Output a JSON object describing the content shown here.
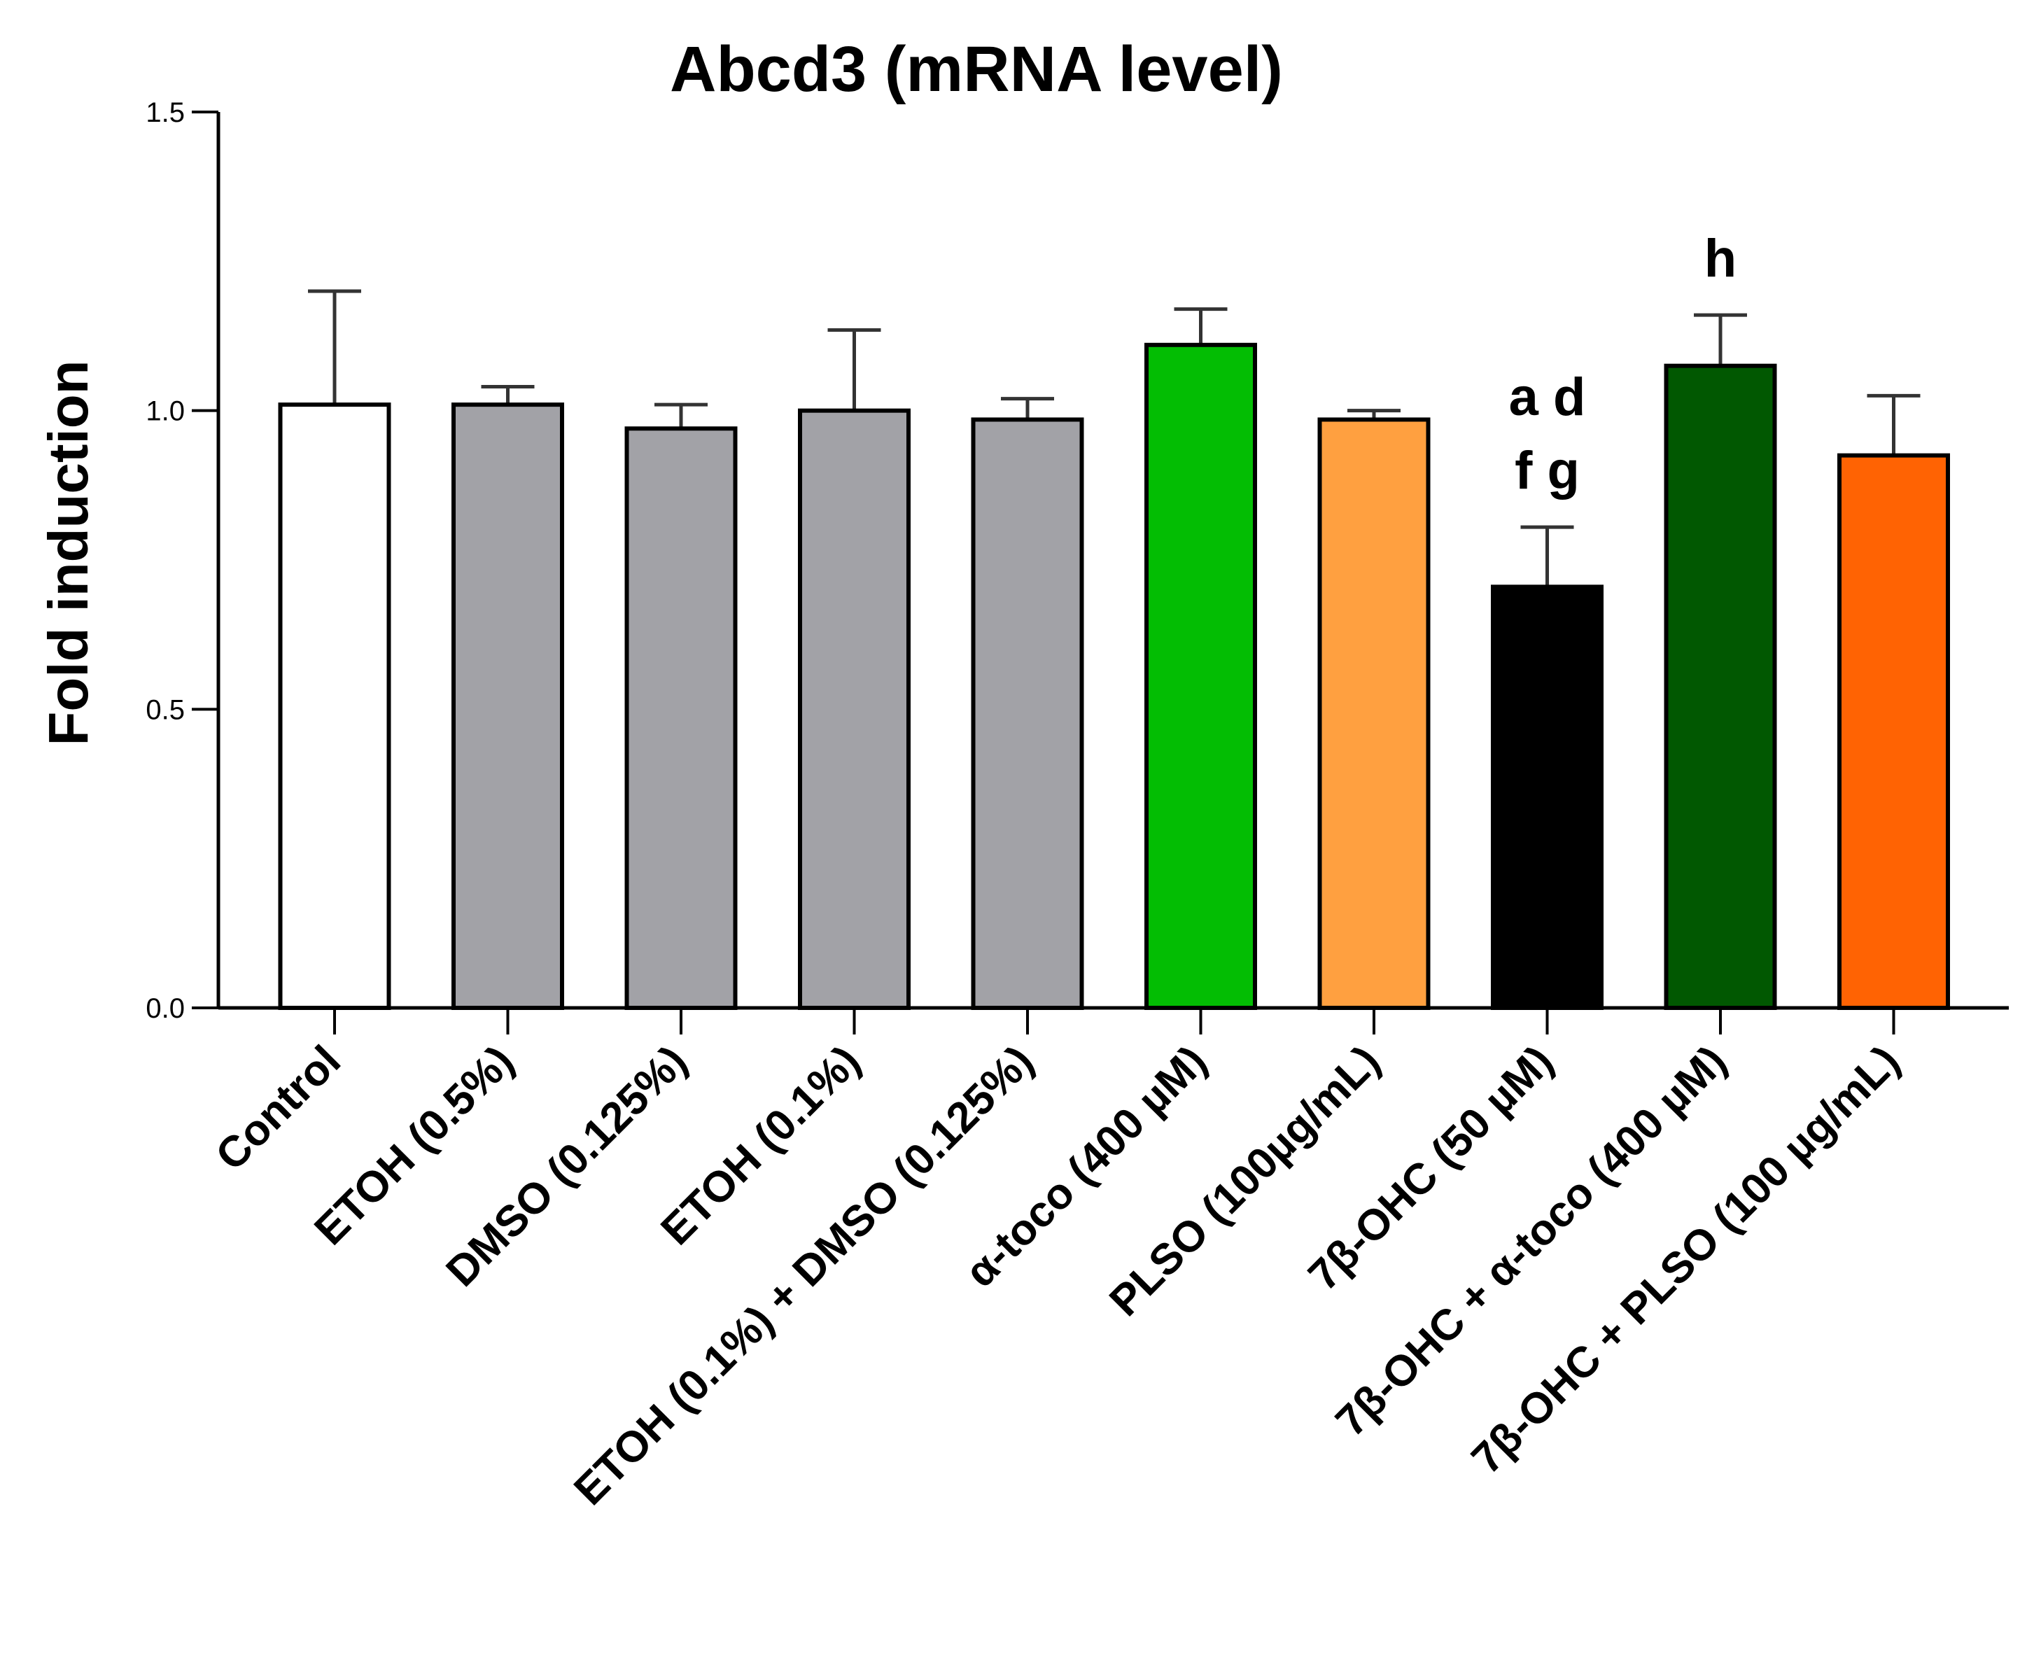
{
  "chart_data": {
    "type": "bar",
    "title": "Abcd3 (mRNA level)",
    "xlabel": "",
    "ylabel": "Fold induction",
    "ylim": [
      0,
      1.5
    ],
    "yticks": [
      "0.0",
      "0.5",
      "1.0",
      "1.5"
    ],
    "ytick_values": [
      0,
      0.5,
      1.0,
      1.5
    ],
    "grid": false,
    "legend": "none",
    "categories": [
      "Control",
      "ETOH (0.5%)",
      "DMSO (0.125%)",
      "ETOH (0.1%)",
      "ETOH (0.1%) + DMSO (0.125%)",
      "α-toco (400 µM)",
      "PLSO (100µg/mL)",
      "7β-OHC (50 µM)",
      "7β-OHC + α-toco (400 µM)",
      "7β-OHC + PLSO (100 µg/mL)"
    ],
    "values": [
      1.01,
      1.01,
      0.97,
      1.0,
      0.985,
      1.11,
      0.985,
      0.705,
      1.075,
      0.925
    ],
    "errors": [
      0.19,
      0.03,
      0.04,
      0.135,
      0.035,
      0.06,
      0.015,
      0.1,
      0.085,
      0.1
    ],
    "colors": [
      "#ffffff",
      "#a2a2a7",
      "#a2a2a7",
      "#a2a2a7",
      "#a2a2a7",
      "#03bd03",
      "#ffa040",
      "#000000",
      "#015801",
      "#ff6303"
    ],
    "annotations": [
      {
        "category_index": 7,
        "lines": [
          "a d",
          "f g"
        ]
      },
      {
        "category_index": 8,
        "lines": [
          "h"
        ]
      }
    ]
  }
}
